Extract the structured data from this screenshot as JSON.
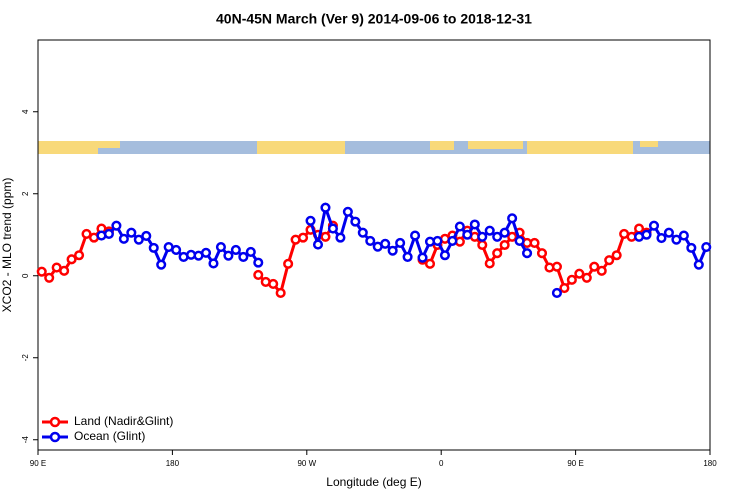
{
  "chart_data": {
    "type": "line",
    "title": "40N-45N March (Ver 9)   2014-09-06 to 2018-12-31",
    "x_label": "Longitude (deg E)",
    "y_label": "XCO2 - MLO trend (ppm)",
    "xlim": [
      90,
      540
    ],
    "xticks": [
      {
        "value": 90,
        "label": "90 E"
      },
      180,
      {
        "value": 270,
        "label": "90 W"
      },
      {
        "value": 360,
        "label": "0"
      },
      {
        "value": 450,
        "label": "90 E"
      },
      {
        "value": 540,
        "label": "180"
      }
    ],
    "ylim": [
      -4.25,
      5.75
    ],
    "yticks": [
      -4,
      -2,
      0,
      2,
      4
    ],
    "legend": "bottom-left",
    "x": [
      92.5,
      97.5,
      102.5,
      107.5,
      112.5,
      117.5,
      122.5,
      127.5,
      132.5,
      137.5,
      142.5,
      147.5,
      152.5,
      157.5,
      162.5,
      167.5,
      172.5,
      177.5,
      182.5,
      187.5,
      192.5,
      197.5,
      202.5,
      207.5,
      212.5,
      217.5,
      222.5,
      227.5,
      232.5,
      237.5,
      242.5,
      247.5,
      252.5,
      257.5,
      262.5,
      267.5,
      272.5,
      277.5,
      282.5,
      287.5,
      292.5,
      297.5,
      302.5,
      307.5,
      312.5,
      317.5,
      322.5,
      327.5,
      332.5,
      337.5,
      342.5,
      347.5,
      352.5,
      357.5,
      362.5,
      367.5,
      372.5,
      377.5,
      382.5,
      387.5,
      392.5,
      397.5,
      402.5,
      407.5,
      412.5,
      417.5,
      422.5,
      427.5,
      432.5,
      437.5,
      442.5,
      447.5,
      452.5,
      457.5,
      462.5,
      467.5,
      472.5,
      477.5,
      482.5,
      487.5,
      492.5,
      497.5,
      502.5,
      507.5,
      512.5,
      517.5,
      522.5,
      527.5,
      532.5,
      537.5
    ],
    "series": [
      {
        "name": "Land (Nadir&Glint)",
        "color": "#ff0000",
        "values": [
          0.1,
          -0.05,
          0.2,
          0.12,
          0.4,
          0.5,
          1.02,
          0.93,
          1.15,
          1.08,
          null,
          null,
          null,
          null,
          null,
          null,
          null,
          null,
          null,
          null,
          null,
          null,
          null,
          null,
          null,
          null,
          null,
          null,
          null,
          0.02,
          -0.15,
          -0.2,
          -0.42,
          0.29,
          0.88,
          0.93,
          1.12,
          1.0,
          0.95,
          1.22,
          null,
          null,
          null,
          null,
          null,
          null,
          null,
          null,
          null,
          null,
          null,
          0.39,
          0.29,
          0.75,
          0.9,
          0.98,
          0.83,
          1.1,
          0.95,
          0.75,
          0.3,
          0.55,
          0.75,
          0.95,
          1.05,
          0.8,
          0.8,
          0.55,
          0.2,
          0.22,
          -0.3,
          -0.1,
          0.05,
          -0.05,
          0.22,
          0.12,
          0.38,
          0.5,
          1.02,
          0.95,
          1.15,
          1.05,
          null,
          null,
          null,
          null,
          null,
          null,
          null,
          null
        ]
      },
      {
        "name": "Ocean (Glint)",
        "color": "#0000ee",
        "values": [
          null,
          null,
          null,
          null,
          null,
          null,
          null,
          null,
          0.98,
          1.02,
          1.22,
          0.9,
          1.05,
          0.88,
          0.97,
          0.68,
          0.27,
          0.7,
          0.63,
          0.46,
          0.51,
          0.49,
          0.56,
          0.3,
          0.7,
          0.49,
          0.63,
          0.46,
          0.58,
          0.32,
          null,
          null,
          null,
          null,
          null,
          null,
          1.34,
          0.76,
          1.66,
          1.15,
          0.93,
          1.56,
          1.32,
          1.05,
          0.85,
          0.71,
          0.78,
          0.61,
          0.8,
          0.46,
          0.98,
          0.44,
          0.83,
          0.85,
          0.5,
          0.85,
          1.2,
          1.0,
          1.25,
          0.95,
          1.1,
          0.95,
          1.05,
          1.4,
          0.85,
          0.55,
          null,
          null,
          null,
          -0.42,
          null,
          null,
          null,
          null,
          null,
          null,
          null,
          null,
          null,
          null,
          0.95,
          1.0,
          1.22,
          0.92,
          1.05,
          0.88,
          0.98,
          0.68,
          0.27,
          0.7
        ]
      }
    ]
  }
}
